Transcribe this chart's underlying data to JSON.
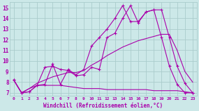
{
  "xlabel": "Windchill (Refroidissement éolien,°C)",
  "background_color": "#cce8e8",
  "grid_color": "#aacccc",
  "line_color": "#aa00aa",
  "x_ticks": [
    0,
    1,
    2,
    3,
    4,
    5,
    6,
    7,
    8,
    9,
    10,
    11,
    12,
    13,
    14,
    15,
    16,
    17,
    18,
    19,
    20,
    21,
    22,
    23
  ],
  "ylim": [
    6.7,
    15.5
  ],
  "xlim": [
    -0.5,
    23.5
  ],
  "yticks": [
    7,
    8,
    9,
    10,
    11,
    12,
    13,
    14,
    15
  ],
  "line1_x": [
    0,
    1,
    2,
    3,
    4,
    5,
    6,
    7,
    8,
    9,
    10,
    11,
    12,
    13,
    14,
    15,
    16,
    17,
    18,
    19,
    20,
    21,
    22,
    23
  ],
  "line1_y": [
    8.2,
    7.0,
    7.1,
    7.7,
    7.8,
    9.7,
    7.8,
    9.2,
    8.7,
    9.2,
    11.4,
    12.2,
    13.0,
    14.0,
    15.2,
    13.7,
    13.7,
    14.6,
    14.8,
    12.2,
    9.5,
    7.8,
    7.0,
    7.0
  ],
  "line2_x": [
    0,
    1,
    2,
    3,
    4,
    5,
    6,
    7,
    8,
    9,
    10,
    11,
    12,
    13,
    14,
    15,
    16,
    17,
    18,
    19,
    20,
    21,
    22,
    23
  ],
  "line2_y": [
    8.2,
    7.0,
    7.1,
    7.7,
    9.4,
    9.5,
    9.2,
    9.1,
    8.6,
    8.7,
    9.4,
    9.2,
    12.2,
    12.6,
    14.0,
    15.2,
    13.6,
    14.6,
    14.8,
    14.8,
    12.2,
    9.5,
    7.9,
    7.0
  ],
  "line3_x": [
    0,
    1,
    2,
    3,
    4,
    5,
    6,
    7,
    8,
    9,
    10,
    11,
    12,
    13,
    14,
    15,
    16,
    17,
    18,
    19,
    20,
    21,
    22,
    23
  ],
  "line3_y": [
    8.2,
    7.0,
    7.4,
    7.7,
    7.7,
    7.7,
    7.7,
    7.6,
    7.5,
    7.4,
    7.4,
    7.4,
    7.3,
    7.3,
    7.3,
    7.3,
    7.3,
    7.3,
    7.2,
    7.2,
    7.2,
    7.2,
    7.1,
    7.0
  ],
  "line4_x": [
    0,
    1,
    2,
    3,
    4,
    5,
    6,
    7,
    8,
    9,
    10,
    11,
    12,
    13,
    14,
    15,
    16,
    17,
    18,
    19,
    20,
    21,
    22,
    23
  ],
  "line4_y": [
    8.2,
    7.0,
    7.4,
    7.9,
    8.2,
    8.5,
    8.7,
    8.9,
    8.9,
    9.1,
    9.6,
    10.0,
    10.5,
    10.9,
    11.3,
    11.6,
    11.9,
    12.1,
    12.3,
    12.5,
    12.5,
    11.0,
    9.0,
    8.0
  ]
}
